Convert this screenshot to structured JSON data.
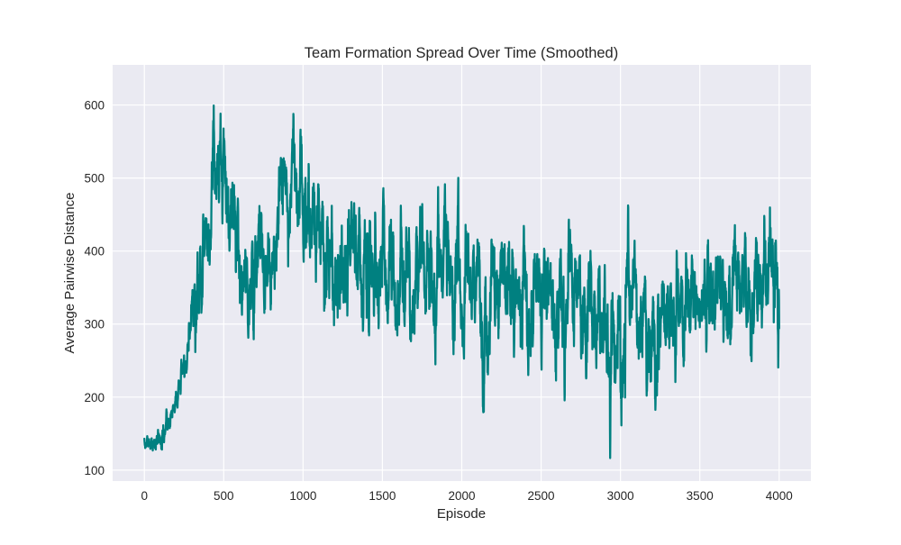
{
  "chart_data": {
    "type": "line",
    "title": "Team Formation Spread Over Time (Smoothed)",
    "xlabel": "Episode",
    "ylabel": "Average Pairwise Distance",
    "xlim": [
      -200,
      4200
    ],
    "ylim": [
      85,
      655
    ],
    "xticks": [
      0,
      500,
      1000,
      1500,
      2000,
      2500,
      3000,
      3500,
      4000
    ],
    "yticks": [
      100,
      200,
      300,
      400,
      500,
      600
    ],
    "grid": true,
    "legend": "none",
    "colors": {
      "background": "#eaeaf2",
      "grid": "#ffffff",
      "line": "#008080"
    },
    "series": [
      {
        "x_start": 0,
        "x_step": 1,
        "x_end": 4000,
        "anchors": [
          [
            0,
            140
          ],
          [
            50,
            135
          ],
          [
            100,
            140
          ],
          [
            150,
            160
          ],
          [
            200,
            200
          ],
          [
            250,
            235
          ],
          [
            300,
            320
          ],
          [
            350,
            370
          ],
          [
            400,
            440
          ],
          [
            450,
            520
          ],
          [
            500,
            520
          ],
          [
            550,
            460
          ],
          [
            600,
            395
          ],
          [
            650,
            360
          ],
          [
            700,
            360
          ],
          [
            750,
            400
          ],
          [
            800,
            420
          ],
          [
            850,
            450
          ],
          [
            900,
            480
          ],
          [
            950,
            540
          ],
          [
            1000,
            470
          ],
          [
            1050,
            420
          ],
          [
            1100,
            430
          ],
          [
            1150,
            415
          ],
          [
            1200,
            370
          ],
          [
            1250,
            360
          ],
          [
            1300,
            380
          ],
          [
            1350,
            400
          ],
          [
            1400,
            390
          ],
          [
            1450,
            390
          ],
          [
            1500,
            400
          ],
          [
            1550,
            370
          ],
          [
            1600,
            360
          ],
          [
            1700,
            360
          ],
          [
            1800,
            380
          ],
          [
            1900,
            370
          ],
          [
            2000,
            330
          ],
          [
            2100,
            340
          ],
          [
            2200,
            340
          ],
          [
            2300,
            360
          ],
          [
            2400,
            350
          ],
          [
            2500,
            340
          ],
          [
            2600,
            330
          ],
          [
            2700,
            320
          ],
          [
            2800,
            310
          ],
          [
            2900,
            320
          ],
          [
            3000,
            300
          ],
          [
            3100,
            300
          ],
          [
            3200,
            290
          ],
          [
            3300,
            300
          ],
          [
            3400,
            320
          ],
          [
            3500,
            330
          ],
          [
            3600,
            340
          ],
          [
            3700,
            330
          ],
          [
            3800,
            340
          ],
          [
            3900,
            350
          ],
          [
            4000,
            340
          ]
        ],
        "y_min": 110,
        "y_max": 630
      }
    ]
  }
}
